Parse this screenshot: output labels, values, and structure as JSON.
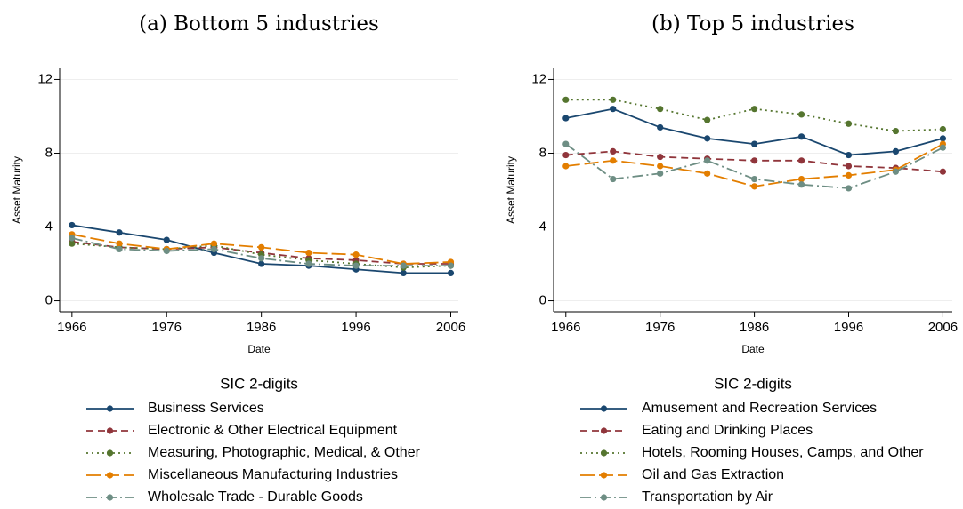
{
  "chart_data": [
    {
      "type": "line",
      "title": "(a) Bottom 5 industries",
      "x_label": "Date",
      "y_label": "Asset Maturity",
      "legend_title": "SIC 2-digits",
      "x": [
        1966,
        1971,
        1976,
        1981,
        1986,
        1991,
        1996,
        2001,
        2006
      ],
      "xlim": [
        1964.7,
        2006.8
      ],
      "xticks": [
        1966,
        1976,
        1986,
        1996,
        2006
      ],
      "ylim": [
        -0.6,
        12.6
      ],
      "yticks": [
        0,
        4,
        8,
        12
      ],
      "grid": true,
      "series": [
        {
          "name": "Business Services",
          "color": "#1a476f",
          "dash": "solid",
          "values": [
            4.1,
            3.7,
            3.3,
            2.6,
            2.0,
            1.9,
            1.7,
            1.5,
            1.5
          ]
        },
        {
          "name": "Electronic & Other Electrical Equipment",
          "color": "#90353b",
          "dash": "dash",
          "values": [
            3.2,
            2.9,
            2.8,
            2.9,
            2.6,
            2.3,
            2.2,
            2.0,
            2.0
          ]
        },
        {
          "name": "Measuring, Photographic, Medical, & Other",
          "color": "#55752f",
          "dash": "dot",
          "values": [
            3.1,
            2.9,
            2.8,
            3.0,
            2.5,
            2.2,
            2.0,
            1.8,
            1.9
          ]
        },
        {
          "name": "Miscellaneous Manufacturing Industries",
          "color": "#e37e00",
          "dash": "longdash",
          "values": [
            3.6,
            3.1,
            2.8,
            3.1,
            2.9,
            2.6,
            2.5,
            2.0,
            2.1
          ]
        },
        {
          "name": "Wholesale Trade - Durable Goods",
          "color": "#6e8e84",
          "dash": "dashdot",
          "values": [
            3.4,
            2.8,
            2.7,
            2.8,
            2.3,
            2.0,
            1.9,
            1.9,
            1.9
          ]
        }
      ]
    },
    {
      "type": "line",
      "title": "(b) Top 5 industries",
      "x_label": "Date",
      "y_label": "Asset Maturity",
      "legend_title": "SIC 2-digits",
      "x": [
        1966,
        1971,
        1976,
        1981,
        1986,
        1991,
        1996,
        2001,
        2006
      ],
      "xlim": [
        1964.7,
        2007
      ],
      "xticks": [
        1966,
        1976,
        1986,
        1996,
        2006
      ],
      "ylim": [
        -0.6,
        12.6
      ],
      "yticks": [
        0,
        4,
        8,
        12
      ],
      "grid": true,
      "series": [
        {
          "name": "Amusement and Recreation Services",
          "color": "#1a476f",
          "dash": "solid",
          "values": [
            9.9,
            10.4,
            9.4,
            8.8,
            8.5,
            8.9,
            7.9,
            8.1,
            8.8
          ]
        },
        {
          "name": "Eating and Drinking Places",
          "color": "#90353b",
          "dash": "dash",
          "values": [
            7.9,
            8.1,
            7.8,
            7.7,
            7.6,
            7.6,
            7.3,
            7.2,
            7.0
          ]
        },
        {
          "name": "Hotels, Rooming Houses, Camps, and Other",
          "color": "#55752f",
          "dash": "dot",
          "values": [
            10.9,
            10.9,
            10.4,
            9.8,
            10.4,
            10.1,
            9.6,
            9.2,
            9.3
          ]
        },
        {
          "name": "Oil and Gas Extraction",
          "color": "#e37e00",
          "dash": "longdash",
          "values": [
            7.3,
            7.6,
            7.3,
            6.9,
            6.2,
            6.6,
            6.8,
            7.1,
            8.5
          ]
        },
        {
          "name": "Transportation by Air",
          "color": "#6e8e84",
          "dash": "dashdot",
          "values": [
            8.5,
            6.6,
            6.9,
            7.6,
            6.6,
            6.3,
            6.1,
            7.0,
            8.3
          ]
        }
      ]
    }
  ]
}
